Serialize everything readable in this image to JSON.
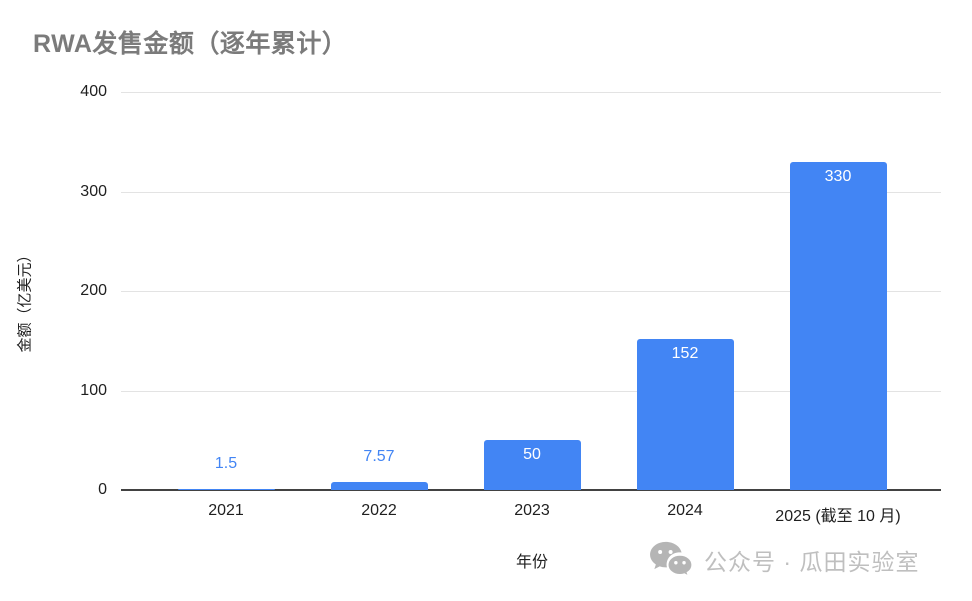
{
  "chart_data": {
    "type": "bar",
    "title": "RWA发售金额（逐年累计）",
    "xlabel": "年份",
    "ylabel": "金额（亿美元）",
    "categories": [
      "2021",
      "2022",
      "2023",
      "2024",
      "2025 (截至 10 月)"
    ],
    "values": [
      1.5,
      7.57,
      50,
      152,
      330
    ],
    "value_labels": [
      "1.5",
      "7.57",
      "50",
      "152",
      "330"
    ],
    "ylim": [
      0,
      400
    ],
    "yticks": [
      0,
      100,
      200,
      300,
      400
    ],
    "grid": "horizontal-on",
    "legend": "none",
    "bar_color": "#4285f4",
    "outside_label_color": "#4285f4",
    "inside_label_color": "#ffffff",
    "title_color": "#7b7b7b",
    "axis_text_color": "#1f1f1f",
    "gridline_color": "#e3e3e3",
    "axis_line_color": "#424242"
  },
  "footer": {
    "watermark_text": "公众号 · 瓜田实验室",
    "watermark_color": "#bfbfbf",
    "icon": "wechat-icon"
  }
}
